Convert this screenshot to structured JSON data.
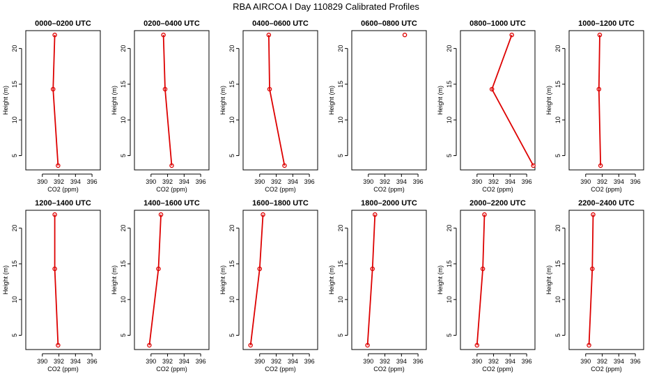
{
  "title": "RBA AIRCOA I  Day 110829  Calibrated Profiles",
  "colors": {
    "series": "#dd0000",
    "axis": "#000000"
  },
  "chart_data": [
    {
      "type": "line",
      "title": "0000–0200 UTC",
      "xlabel": "CO2 (ppm)",
      "ylabel": "Height (m)",
      "xlim": [
        388,
        397
      ],
      "ylim": [
        3,
        22.5
      ],
      "xticks": [
        390,
        392,
        394,
        396
      ],
      "yticks": [
        5,
        10,
        15,
        20
      ],
      "x": [
        391.9,
        391.3,
        391.5
      ],
      "y": [
        3.6,
        14.3,
        21.9
      ]
    },
    {
      "type": "line",
      "title": "0200–0400 UTC",
      "xlabel": "CO2 (ppm)",
      "ylabel": "Height (m)",
      "xlim": [
        388,
        397
      ],
      "ylim": [
        3,
        22.5
      ],
      "xticks": [
        390,
        392,
        394,
        396
      ],
      "yticks": [
        5,
        10,
        15,
        20
      ],
      "x": [
        392.5,
        391.7,
        391.5
      ],
      "y": [
        3.6,
        14.3,
        21.9
      ]
    },
    {
      "type": "line",
      "title": "0400–0600 UTC",
      "xlabel": "CO2 (ppm)",
      "ylabel": "Height (m)",
      "xlim": [
        388,
        397
      ],
      "ylim": [
        3,
        22.5
      ],
      "xticks": [
        390,
        392,
        394,
        396
      ],
      "yticks": [
        5,
        10,
        15,
        20
      ],
      "x": [
        393.0,
        391.2,
        391.1
      ],
      "y": [
        3.6,
        14.3,
        21.9
      ]
    },
    {
      "type": "line",
      "title": "0600–0800 UTC",
      "xlabel": "CO2 (ppm)",
      "ylabel": "Height (m)",
      "xlim": [
        388,
        397
      ],
      "ylim": [
        3,
        22.5
      ],
      "xticks": [
        390,
        392,
        394,
        396
      ],
      "yticks": [
        5,
        10,
        15,
        20
      ],
      "x": [
        394.4
      ],
      "y": [
        21.9
      ]
    },
    {
      "type": "line",
      "title": "0800–1000 UTC",
      "xlabel": "CO2 (ppm)",
      "ylabel": "Height (m)",
      "xlim": [
        388,
        397
      ],
      "ylim": [
        3,
        22.5
      ],
      "xticks": [
        390,
        392,
        394,
        396
      ],
      "yticks": [
        5,
        10,
        15,
        20
      ],
      "x": [
        396.8,
        391.8,
        394.2
      ],
      "y": [
        3.6,
        14.3,
        21.9
      ]
    },
    {
      "type": "line",
      "title": "1000–1200 UTC",
      "xlabel": "CO2 (ppm)",
      "ylabel": "Height (m)",
      "xlim": [
        388,
        397
      ],
      "ylim": [
        3,
        22.5
      ],
      "xticks": [
        390,
        392,
        394,
        396
      ],
      "yticks": [
        5,
        10,
        15,
        20
      ],
      "x": [
        391.8,
        391.6,
        391.7
      ],
      "y": [
        3.6,
        14.3,
        21.9
      ]
    },
    {
      "type": "line",
      "title": "1200–1400 UTC",
      "xlabel": "CO2 (ppm)",
      "ylabel": "Height (m)",
      "xlim": [
        388,
        397
      ],
      "ylim": [
        3,
        22.5
      ],
      "xticks": [
        390,
        392,
        394,
        396
      ],
      "yticks": [
        5,
        10,
        15,
        20
      ],
      "x": [
        391.9,
        391.5,
        391.5
      ],
      "y": [
        3.6,
        14.3,
        21.9
      ]
    },
    {
      "type": "line",
      "title": "1400–1600 UTC",
      "xlabel": "CO2 (ppm)",
      "ylabel": "Height (m)",
      "xlim": [
        388,
        397
      ],
      "ylim": [
        3,
        22.5
      ],
      "xticks": [
        390,
        392,
        394,
        396
      ],
      "yticks": [
        5,
        10,
        15,
        20
      ],
      "x": [
        389.8,
        390.9,
        391.2
      ],
      "y": [
        3.6,
        14.3,
        21.9
      ]
    },
    {
      "type": "line",
      "title": "1600–1800 UTC",
      "xlabel": "CO2 (ppm)",
      "ylabel": "Height (m)",
      "xlim": [
        388,
        397
      ],
      "ylim": [
        3,
        22.5
      ],
      "xticks": [
        390,
        392,
        394,
        396
      ],
      "yticks": [
        5,
        10,
        15,
        20
      ],
      "x": [
        388.9,
        390.0,
        390.4
      ],
      "y": [
        3.6,
        14.3,
        21.9
      ]
    },
    {
      "type": "line",
      "title": "1800–2000 UTC",
      "xlabel": "CO2 (ppm)",
      "ylabel": "Height (m)",
      "xlim": [
        388,
        397
      ],
      "ylim": [
        3,
        22.5
      ],
      "xticks": [
        390,
        392,
        394,
        396
      ],
      "yticks": [
        5,
        10,
        15,
        20
      ],
      "x": [
        389.9,
        390.5,
        390.8
      ],
      "y": [
        3.6,
        14.3,
        21.9
      ]
    },
    {
      "type": "line",
      "title": "2000–2200 UTC",
      "xlabel": "CO2 (ppm)",
      "ylabel": "Height (m)",
      "xlim": [
        388,
        397
      ],
      "ylim": [
        3,
        22.5
      ],
      "xticks": [
        390,
        392,
        394,
        396
      ],
      "yticks": [
        5,
        10,
        15,
        20
      ],
      "x": [
        390.0,
        390.7,
        390.9
      ],
      "y": [
        3.6,
        14.3,
        21.9
      ]
    },
    {
      "type": "line",
      "title": "2200–2400 UTC",
      "xlabel": "CO2 (ppm)",
      "ylabel": "Height (m)",
      "xlim": [
        388,
        397
      ],
      "ylim": [
        3,
        22.5
      ],
      "xticks": [
        390,
        392,
        394,
        396
      ],
      "yticks": [
        5,
        10,
        15,
        20
      ],
      "x": [
        390.4,
        390.8,
        390.9
      ],
      "y": [
        3.6,
        14.3,
        21.9
      ]
    }
  ]
}
